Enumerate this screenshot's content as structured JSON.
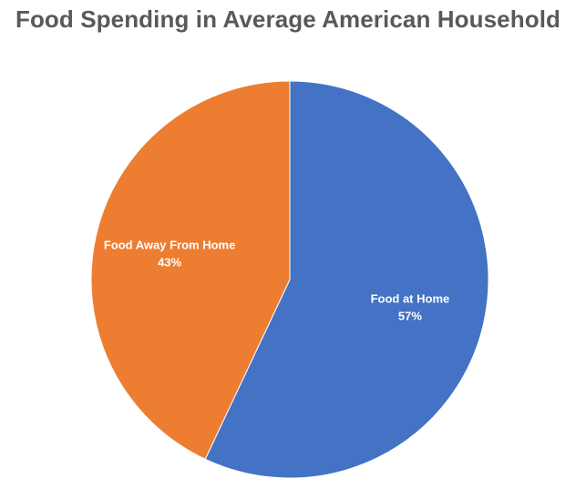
{
  "chart_data": {
    "type": "pie",
    "title": "Food Spending in Average American Household",
    "slices": [
      {
        "label": "Food at Home",
        "value": 57,
        "display": "57%",
        "color": "#4472C4"
      },
      {
        "label": "Food Away From Home",
        "value": 43,
        "display": "43%",
        "color": "#ED7D31"
      }
    ],
    "start_angle": "12 o'clock",
    "direction": "clockwise",
    "legend": "none",
    "data_labels": "inside, category name and percentage"
  }
}
